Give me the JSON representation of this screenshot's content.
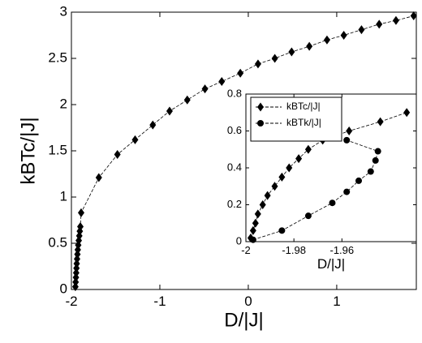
{
  "chart_data": [
    {
      "type": "line",
      "xlabel": "D/|J|",
      "ylabel": "kBTc/|J|",
      "xlim": [
        -2,
        1.9
      ],
      "ylim": [
        0,
        3
      ],
      "xticks": [
        -2,
        -1,
        0,
        1
      ],
      "yticks": [
        0,
        0.5,
        1,
        1.5,
        2,
        2.5,
        3
      ],
      "series": [
        {
          "color": "#000000",
          "marker": "diamond",
          "x": [
            -1.955,
            -1.952,
            -1.949,
            -1.946,
            -1.943,
            -1.94,
            -1.936,
            -1.932,
            -1.928,
            -1.923,
            -1.917,
            -1.911,
            -1.905,
            -1.899,
            -1.89,
            -1.69,
            -1.48,
            -1.28,
            -1.08,
            -0.89,
            -0.69,
            -0.49,
            -0.3,
            -0.09,
            0.11,
            0.3,
            0.49,
            0.69,
            0.89,
            1.08,
            1.28,
            1.48,
            1.67,
            1.87
          ],
          "values": [
            0.03,
            0.08,
            0.13,
            0.18,
            0.23,
            0.28,
            0.33,
            0.38,
            0.43,
            0.48,
            0.53,
            0.58,
            0.63,
            0.68,
            0.83,
            1.21,
            1.46,
            1.62,
            1.78,
            1.93,
            2.05,
            2.17,
            2.25,
            2.34,
            2.44,
            2.5,
            2.57,
            2.63,
            2.7,
            2.75,
            2.81,
            2.87,
            2.91,
            2.96
          ]
        }
      ]
    },
    {
      "type": "line",
      "xlabel": "D/|J|",
      "legend": "upper left",
      "xlim": [
        -2,
        -1.929
      ],
      "ylim": [
        0,
        0.8
      ],
      "xticks": [
        -2,
        -1.98,
        -1.96
      ],
      "yticks": [
        0,
        0.2,
        0.4,
        0.6,
        0.8
      ],
      "series": [
        {
          "name": "kBTc/|J|",
          "color": "#000000",
          "marker": "diamond",
          "x": [
            -1.998,
            -1.997,
            -1.996,
            -1.995,
            -1.993,
            -1.991,
            -1.988,
            -1.985,
            -1.982,
            -1.978,
            -1.974,
            -1.968,
            -1.957,
            -1.944,
            -1.933
          ],
          "values": [
            0.02,
            0.06,
            0.1,
            0.15,
            0.2,
            0.25,
            0.3,
            0.35,
            0.4,
            0.45,
            0.5,
            0.55,
            0.6,
            0.65,
            0.7
          ]
        },
        {
          "name": "kBTk/|J|",
          "color": "#000000",
          "marker": "circle",
          "x": [
            -1.997,
            -1.985,
            -1.974,
            -1.964,
            -1.958,
            -1.953,
            -1.948,
            -1.946,
            -1.945,
            -1.958
          ],
          "values": [
            0.01,
            0.06,
            0.14,
            0.21,
            0.27,
            0.33,
            0.38,
            0.44,
            0.49,
            0.55
          ]
        }
      ]
    }
  ]
}
